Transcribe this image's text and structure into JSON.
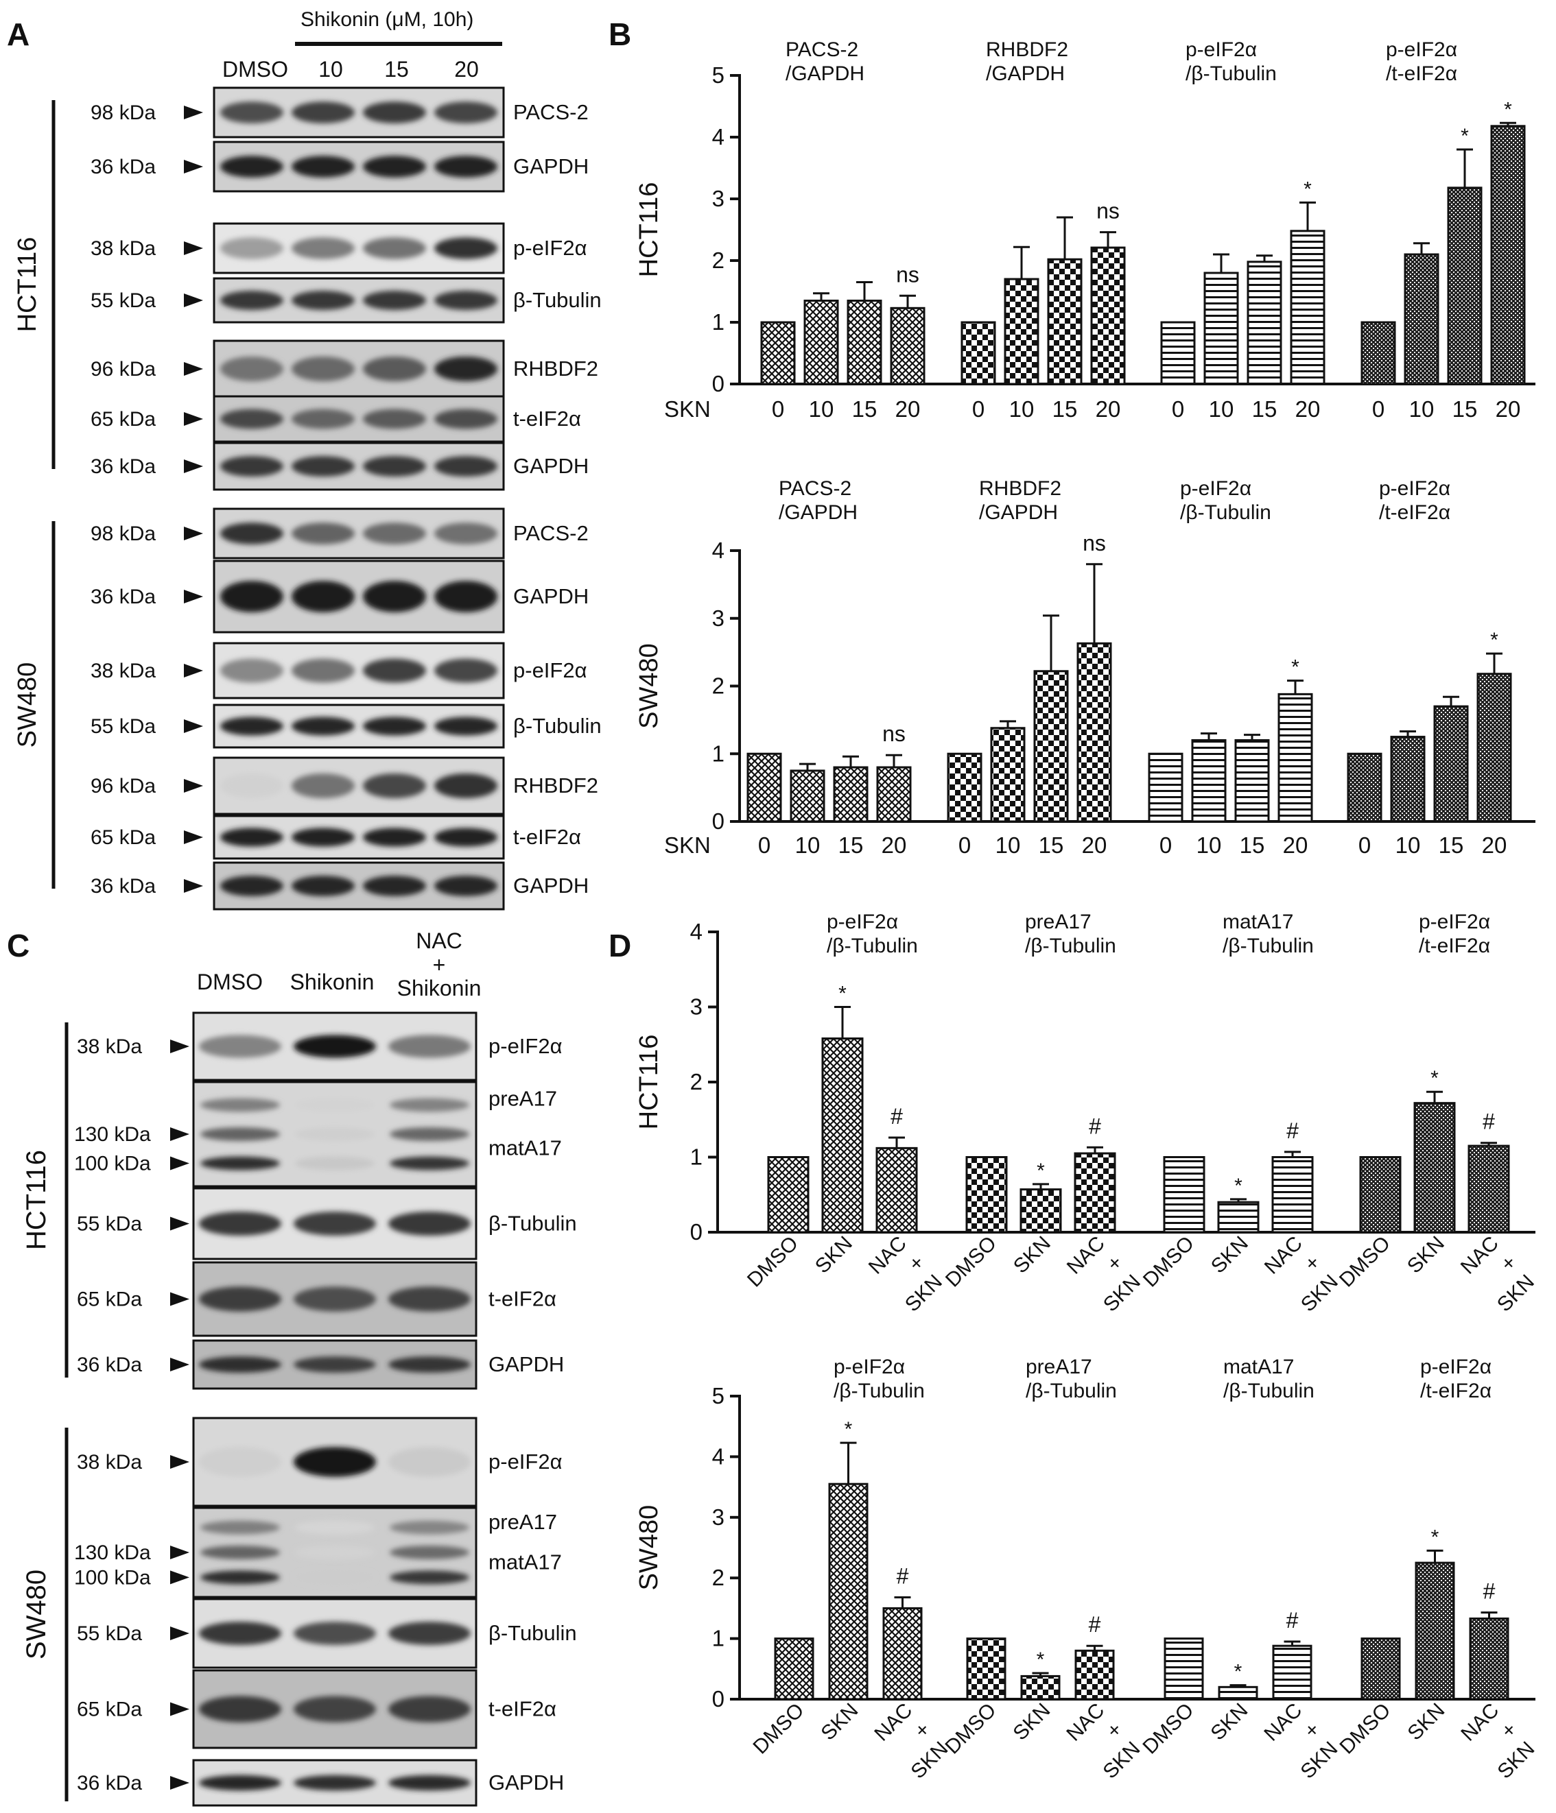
{
  "panels": {
    "A": "A",
    "B": "B",
    "C": "C",
    "D": "D"
  },
  "panelA": {
    "treatment_header": "Shikonin (μM, 10h)",
    "lanes": [
      "DMSO",
      "10",
      "15",
      "20"
    ],
    "groups": [
      {
        "name": "HCT116",
        "rows": [
          {
            "kda": "98 kDa",
            "protein": "PACS-2",
            "intensity": [
              0.72,
              0.78,
              0.8,
              0.76
            ],
            "bg": "#d7d7d7"
          },
          {
            "kda": "36 kDa",
            "protein": "GAPDH",
            "intensity": [
              0.92,
              0.92,
              0.92,
              0.92
            ],
            "bg": "#cfcfcf"
          },
          {
            "kda": "38 kDa",
            "protein": "p-eIF2α",
            "intensity": [
              0.35,
              0.5,
              0.55,
              0.85
            ],
            "bg": "#e6e6e6"
          },
          {
            "kda": "55 kDa",
            "protein": "β-Tubulin",
            "intensity": [
              0.82,
              0.82,
              0.82,
              0.82
            ],
            "bg": "#d4d4d4"
          },
          {
            "kda": "96 kDa",
            "protein": "RHBDF2",
            "intensity": [
              0.55,
              0.6,
              0.66,
              0.9
            ],
            "bg": "#cbcbcb"
          },
          {
            "kda": "65 kDa",
            "protein": "t-eIF2α",
            "intensity": [
              0.75,
              0.62,
              0.66,
              0.72
            ],
            "bg": "#c8c8c8"
          },
          {
            "kda": "36 kDa",
            "protein": "GAPDH",
            "intensity": [
              0.82,
              0.82,
              0.82,
              0.82
            ],
            "bg": "#d0d0d0"
          }
        ]
      },
      {
        "name": "SW480",
        "rows": [
          {
            "kda": "98 kDa",
            "protein": "PACS-2",
            "intensity": [
              0.85,
              0.62,
              0.58,
              0.56
            ],
            "bg": "#d4d4d4"
          },
          {
            "kda": "36 kDa",
            "protein": "GAPDH",
            "intensity": [
              0.95,
              0.95,
              0.95,
              0.95
            ],
            "bg": "#cfcfcf"
          },
          {
            "kda": "38 kDa",
            "protein": "p-eIF2α",
            "intensity": [
              0.45,
              0.55,
              0.78,
              0.75
            ],
            "bg": "#e2e2e2"
          },
          {
            "kda": "55 kDa",
            "protein": "β-Tubulin",
            "intensity": [
              0.9,
              0.9,
              0.9,
              0.9
            ],
            "bg": "#e0e0e0"
          },
          {
            "kda": "96 kDa",
            "protein": "RHBDF2",
            "intensity": [
              0.12,
              0.55,
              0.75,
              0.85
            ],
            "bg": "#d8d8d8"
          },
          {
            "kda": "65 kDa",
            "protein": "t-eIF2α",
            "intensity": [
              0.92,
              0.92,
              0.92,
              0.92
            ],
            "bg": "#dcdcdc"
          },
          {
            "kda": "36 kDa",
            "protein": "GAPDH",
            "intensity": [
              0.9,
              0.9,
              0.9,
              0.9
            ],
            "bg": "#c6c6c6"
          }
        ]
      }
    ]
  },
  "panelC": {
    "lanes": [
      "DMSO",
      "Shikonin",
      "NAC",
      "+",
      "Shikonin"
    ],
    "groups": [
      {
        "name": "HCT116",
        "rows": [
          {
            "kda": [
              "38 kDa"
            ],
            "protein": [
              "p-eIF2α"
            ],
            "intensity": [
              0.45,
              0.95,
              0.5
            ],
            "bg": "#e0e0e0"
          },
          {
            "kda": [
              "130 kDa",
              "100 kDa"
            ],
            "protein": [
              "preA17",
              "matA17"
            ],
            "intensity": [
              0.85,
              0.12,
              0.82
            ],
            "bg": "#d6d6d6"
          },
          {
            "kda": [
              "55 kDa"
            ],
            "protein": [
              "β-Tubulin"
            ],
            "intensity": [
              0.8,
              0.78,
              0.8
            ],
            "bg": "#e2e2e2"
          },
          {
            "kda": [
              "65 kDa"
            ],
            "protein": [
              "t-eIF2α"
            ],
            "intensity": [
              0.78,
              0.7,
              0.75
            ],
            "bg": "#bdbdbd"
          },
          {
            "kda": [
              "36 kDa"
            ],
            "protein": [
              "GAPDH"
            ],
            "intensity": [
              0.85,
              0.78,
              0.82
            ],
            "bg": "#b8b8b8"
          }
        ]
      },
      {
        "name": "SW480",
        "rows": [
          {
            "kda": [
              "38 kDa"
            ],
            "protein": [
              "p-eIF2α"
            ],
            "intensity": [
              0.1,
              0.95,
              0.12
            ],
            "bg": "#d8d8d8"
          },
          {
            "kda": [
              "130 kDa",
              "100 kDa"
            ],
            "protein": [
              "preA17",
              "matA17"
            ],
            "intensity": [
              0.85,
              0.1,
              0.8
            ],
            "bg": "#cdcdcd"
          },
          {
            "kda": [
              "55 kDa"
            ],
            "protein": [
              "β-Tubulin"
            ],
            "intensity": [
              0.8,
              0.7,
              0.78
            ],
            "bg": "#dedede"
          },
          {
            "kda": [
              "65 kDa"
            ],
            "protein": [
              "t-eIF2α"
            ],
            "intensity": [
              0.8,
              0.75,
              0.78
            ],
            "bg": "#bcbcbc"
          },
          {
            "kda": [
              "36 kDa"
            ],
            "protein": [
              "GAPDH"
            ],
            "intensity": [
              0.88,
              0.85,
              0.86
            ],
            "bg": "#dddddd"
          }
        ]
      }
    ]
  },
  "chart_data": [
    {
      "id": "B-HCT116",
      "type": "bar",
      "ylabel": "HCT116",
      "ylim": [
        0,
        5
      ],
      "yticks": [
        0,
        1,
        2,
        3,
        4,
        5
      ],
      "xprefix": "SKN",
      "groups": [
        {
          "title": [
            "PACS-2",
            "/GAPDH"
          ],
          "categories": [
            "0",
            "10",
            "15",
            "20"
          ],
          "values": [
            1.0,
            1.35,
            1.35,
            1.23
          ],
          "errors": [
            0,
            0.12,
            0.3,
            0.2
          ],
          "marks": [
            "",
            "",
            "",
            "ns"
          ],
          "pattern": "cross"
        },
        {
          "title": [
            "RHBDF2",
            "/GAPDH"
          ],
          "categories": [
            "0",
            "10",
            "15",
            "20"
          ],
          "values": [
            1.0,
            1.7,
            2.02,
            2.21
          ],
          "errors": [
            0,
            0.52,
            0.68,
            0.25
          ],
          "marks": [
            "",
            "",
            "",
            "ns"
          ],
          "pattern": "check"
        },
        {
          "title": [
            "p-eIF2α",
            "/β-Tubulin"
          ],
          "categories": [
            "0",
            "10",
            "15",
            "20"
          ],
          "values": [
            1.0,
            1.8,
            1.98,
            2.48
          ],
          "errors": [
            0,
            0.3,
            0.1,
            0.46
          ],
          "marks": [
            "",
            "",
            "",
            "*"
          ],
          "pattern": "hlines"
        },
        {
          "title": [
            "p-eIF2α",
            "/t-eIF2α"
          ],
          "categories": [
            "0",
            "10",
            "15",
            "20"
          ],
          "values": [
            1.0,
            2.1,
            3.18,
            4.18
          ],
          "errors": [
            0,
            0.18,
            0.62,
            0.05
          ],
          "marks": [
            "",
            "",
            "*",
            "*"
          ],
          "pattern": "dense"
        }
      ]
    },
    {
      "id": "B-SW480",
      "type": "bar",
      "ylabel": "SW480",
      "ylim": [
        0,
        4
      ],
      "yticks": [
        0,
        1,
        2,
        3,
        4
      ],
      "xprefix": "SKN",
      "groups": [
        {
          "title": [
            "PACS-2",
            "/GAPDH"
          ],
          "categories": [
            "0",
            "10",
            "15",
            "20"
          ],
          "values": [
            1.0,
            0.75,
            0.8,
            0.8
          ],
          "errors": [
            0,
            0.1,
            0.16,
            0.18
          ],
          "marks": [
            "",
            "",
            "",
            "ns"
          ],
          "pattern": "cross"
        },
        {
          "title": [
            "RHBDF2",
            "/GAPDH"
          ],
          "categories": [
            "0",
            "10",
            "15",
            "20"
          ],
          "values": [
            1.0,
            1.38,
            2.22,
            2.63
          ],
          "errors": [
            0,
            0.1,
            0.82,
            1.17
          ],
          "marks": [
            "",
            "",
            "",
            "ns"
          ],
          "pattern": "check"
        },
        {
          "title": [
            "p-eIF2α",
            "/β-Tubulin"
          ],
          "categories": [
            "0",
            "10",
            "15",
            "20"
          ],
          "values": [
            1.0,
            1.2,
            1.2,
            1.88
          ],
          "errors": [
            0,
            0.1,
            0.08,
            0.2
          ],
          "marks": [
            "",
            "",
            "",
            "*"
          ],
          "pattern": "hlines"
        },
        {
          "title": [
            "p-eIF2α",
            "/t-eIF2α"
          ],
          "categories": [
            "0",
            "10",
            "15",
            "20"
          ],
          "values": [
            1.0,
            1.25,
            1.7,
            2.18
          ],
          "errors": [
            0,
            0.08,
            0.14,
            0.3
          ],
          "marks": [
            "",
            "",
            "",
            "*"
          ],
          "pattern": "dense"
        }
      ]
    },
    {
      "id": "D-HCT116",
      "type": "bar",
      "ylabel": "HCT116",
      "ylim": [
        0,
        4
      ],
      "yticks": [
        0,
        1,
        2,
        3,
        4
      ],
      "xprefix": "",
      "groups": [
        {
          "title": [
            "p-eIF2α",
            "/β-Tubulin"
          ],
          "categories": [
            "DMSO",
            "SKN",
            "NAC|+|SKN"
          ],
          "values": [
            1.0,
            2.58,
            1.12
          ],
          "errors": [
            0,
            0.42,
            0.14
          ],
          "marks": [
            "",
            "*",
            "#"
          ],
          "pattern": "cross"
        },
        {
          "title": [
            "preA17",
            "/β-Tubulin"
          ],
          "categories": [
            "DMSO",
            "SKN",
            "NAC|+|SKN"
          ],
          "values": [
            1.0,
            0.57,
            1.05
          ],
          "errors": [
            0,
            0.07,
            0.08
          ],
          "marks": [
            "",
            "*",
            "#"
          ],
          "pattern": "check"
        },
        {
          "title": [
            "matA17",
            "/β-Tubulin"
          ],
          "categories": [
            "DMSO",
            "SKN",
            "NAC|+|SKN"
          ],
          "values": [
            1.0,
            0.4,
            1.0
          ],
          "errors": [
            0,
            0.04,
            0.07
          ],
          "marks": [
            "",
            "*",
            "#"
          ],
          "pattern": "hlines"
        },
        {
          "title": [
            "p-eIF2α",
            "/t-eIF2α"
          ],
          "categories": [
            "DMSO",
            "SKN",
            "NAC|+|SKN"
          ],
          "values": [
            1.0,
            1.72,
            1.15
          ],
          "errors": [
            0,
            0.15,
            0.04
          ],
          "marks": [
            "",
            "*",
            "#"
          ],
          "pattern": "dense"
        }
      ]
    },
    {
      "id": "D-SW480",
      "type": "bar",
      "ylabel": "SW480",
      "ylim": [
        0,
        5
      ],
      "yticks": [
        0,
        1,
        2,
        3,
        4,
        5
      ],
      "xprefix": "",
      "groups": [
        {
          "title": [
            "p-eIF2α",
            "/β-Tubulin"
          ],
          "categories": [
            "DMSO",
            "SKN",
            "NAC|+|SKN"
          ],
          "values": [
            1.0,
            3.55,
            1.5
          ],
          "errors": [
            0,
            0.68,
            0.18
          ],
          "marks": [
            "",
            "*",
            "#"
          ],
          "pattern": "cross"
        },
        {
          "title": [
            "preA17",
            "/β-Tubulin"
          ],
          "categories": [
            "DMSO",
            "SKN",
            "NAC|+|SKN"
          ],
          "values": [
            1.0,
            0.38,
            0.8
          ],
          "errors": [
            0,
            0.05,
            0.08
          ],
          "marks": [
            "",
            "*",
            "#"
          ],
          "pattern": "check"
        },
        {
          "title": [
            "matA17",
            "/β-Tubulin"
          ],
          "categories": [
            "DMSO",
            "SKN",
            "NAC|+|SKN"
          ],
          "values": [
            1.0,
            0.2,
            0.88
          ],
          "errors": [
            0,
            0.03,
            0.07
          ],
          "marks": [
            "",
            "*",
            "#"
          ],
          "pattern": "hlines"
        },
        {
          "title": [
            "p-eIF2α",
            "/t-eIF2α"
          ],
          "categories": [
            "DMSO",
            "SKN",
            "NAC|+|SKN"
          ],
          "values": [
            1.0,
            2.25,
            1.33
          ],
          "errors": [
            0,
            0.2,
            0.1
          ],
          "marks": [
            "",
            "*",
            "#"
          ],
          "pattern": "dense"
        }
      ]
    }
  ]
}
